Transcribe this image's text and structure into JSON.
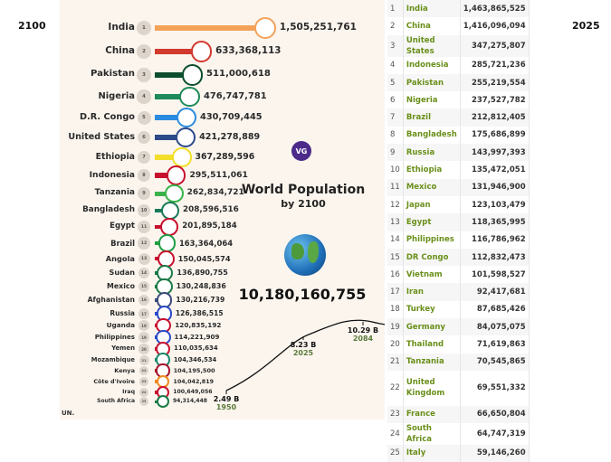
{
  "left_year": "2100",
  "right_year": "2025",
  "infographic": {
    "title": "World Population",
    "subtitle": "by 2100",
    "total": "10,180,160,755",
    "logo": "VG",
    "source": "UN.",
    "rows": [
      {
        "rank": "1",
        "country": "India",
        "value": "1,505,251,761",
        "color": "#f4a259"
      },
      {
        "rank": "2",
        "country": "China",
        "value": "633,368,113",
        "color": "#d23a2e"
      },
      {
        "rank": "3",
        "country": "Pakistan",
        "value": "511,000,618",
        "color": "#0b4d2c"
      },
      {
        "rank": "4",
        "country": "Nigeria",
        "value": "476,747,781",
        "color": "#1d8a5a"
      },
      {
        "rank": "5",
        "country": "D.R. Congo",
        "value": "430,709,445",
        "color": "#2b8be0"
      },
      {
        "rank": "6",
        "country": "United States",
        "value": "421,278,889",
        "color": "#2c4a8a"
      },
      {
        "rank": "7",
        "country": "Ethiopia",
        "value": "367,289,596",
        "color": "#f1df2a"
      },
      {
        "rank": "8",
        "country": "Indonesia",
        "value": "295,511,061",
        "color": "#c8102e"
      },
      {
        "rank": "9",
        "country": "Tanzania",
        "value": "262,834,721",
        "color": "#3ab44a"
      },
      {
        "rank": "10",
        "country": "Bangladesh",
        "value": "208,596,516",
        "color": "#1a7a5a"
      },
      {
        "rank": "11",
        "country": "Egypt",
        "value": "201,895,184",
        "color": "#c8102e"
      },
      {
        "rank": "12",
        "country": "Brazil",
        "value": "163,364,064",
        "color": "#1f9e45"
      },
      {
        "rank": "13",
        "country": "Angola",
        "value": "150,045,574",
        "color": "#c8102e"
      },
      {
        "rank": "14",
        "country": "Sudan",
        "value": "136,890,755",
        "color": "#1a7a45"
      },
      {
        "rank": "15",
        "country": "Mexico",
        "value": "130,248,836",
        "color": "#1a7a45"
      },
      {
        "rank": "16",
        "country": "Afghanistan",
        "value": "130,216,739",
        "color": "#3a4a7a"
      },
      {
        "rank": "17",
        "country": "Russia",
        "value": "126,386,515",
        "color": "#2a4ac8"
      },
      {
        "rank": "18",
        "country": "Uganda",
        "value": "120,835,192",
        "color": "#c8102e"
      },
      {
        "rank": "19",
        "country": "Philippines",
        "value": "114,221,909",
        "color": "#2a4ac8"
      },
      {
        "rank": "20",
        "country": "Yemen",
        "value": "110,035,634",
        "color": "#c8102e"
      },
      {
        "rank": "21",
        "country": "Mozambique",
        "value": "104,346,534",
        "color": "#1a8a6a"
      },
      {
        "rank": "22",
        "country": "Kenya",
        "value": "104,195,500",
        "color": "#a8102e"
      },
      {
        "rank": "23",
        "country": "Côte d'Ivoire",
        "value": "104,042,819",
        "color": "#f08a20"
      },
      {
        "rank": "24",
        "country": "Iraq",
        "value": "100,649,056",
        "color": "#c8102e"
      },
      {
        "rank": "25",
        "country": "South Africa",
        "value": "94,314,448",
        "color": "#1a7a45"
      }
    ],
    "trend": [
      {
        "year": "1950",
        "value": "2.49 B"
      },
      {
        "year": "2025",
        "value": "8.23 B"
      },
      {
        "year": "2084",
        "value": "10.29 B"
      }
    ]
  },
  "table": [
    {
      "rank": "1",
      "country": "India",
      "value": "1,463,865,525"
    },
    {
      "rank": "2",
      "country": "China",
      "value": "1,416,096,094"
    },
    {
      "rank": "3",
      "country": "United States",
      "value": "347,275,807"
    },
    {
      "rank": "4",
      "country": "Indonesia",
      "value": "285,721,236"
    },
    {
      "rank": "5",
      "country": "Pakistan",
      "value": "255,219,554"
    },
    {
      "rank": "6",
      "country": "Nigeria",
      "value": "237,527,782"
    },
    {
      "rank": "7",
      "country": "Brazil",
      "value": "212,812,405"
    },
    {
      "rank": "8",
      "country": "Bangladesh",
      "value": "175,686,899"
    },
    {
      "rank": "9",
      "country": "Russia",
      "value": "143,997,393"
    },
    {
      "rank": "10",
      "country": "Ethiopia",
      "value": "135,472,051"
    },
    {
      "rank": "11",
      "country": "Mexico",
      "value": "131,946,900"
    },
    {
      "rank": "12",
      "country": "Japan",
      "value": "123,103,479"
    },
    {
      "rank": "13",
      "country": "Egypt",
      "value": "118,365,995"
    },
    {
      "rank": "14",
      "country": "Philippines",
      "value": "116,786,962"
    },
    {
      "rank": "15",
      "country": "DR Congo",
      "value": "112,832,473"
    },
    {
      "rank": "16",
      "country": "Vietnam",
      "value": "101,598,527"
    },
    {
      "rank": "17",
      "country": "Iran",
      "value": "92,417,681"
    },
    {
      "rank": "18",
      "country": "Turkey",
      "value": "87,685,426"
    },
    {
      "rank": "19",
      "country": "Germany",
      "value": "84,075,075"
    },
    {
      "rank": "20",
      "country": "Thailand",
      "value": "71,619,863"
    },
    {
      "rank": "21",
      "country": "Tanzania",
      "value": "70,545,865"
    },
    {
      "rank": "22",
      "country": "United Kingdom",
      "value": "69,551,332"
    },
    {
      "rank": "23",
      "country": "France",
      "value": "66,650,804"
    },
    {
      "rank": "24",
      "country": "South Africa",
      "value": "64,747,319"
    },
    {
      "rank": "25",
      "country": "Italy",
      "value": "59,146,260"
    }
  ]
}
